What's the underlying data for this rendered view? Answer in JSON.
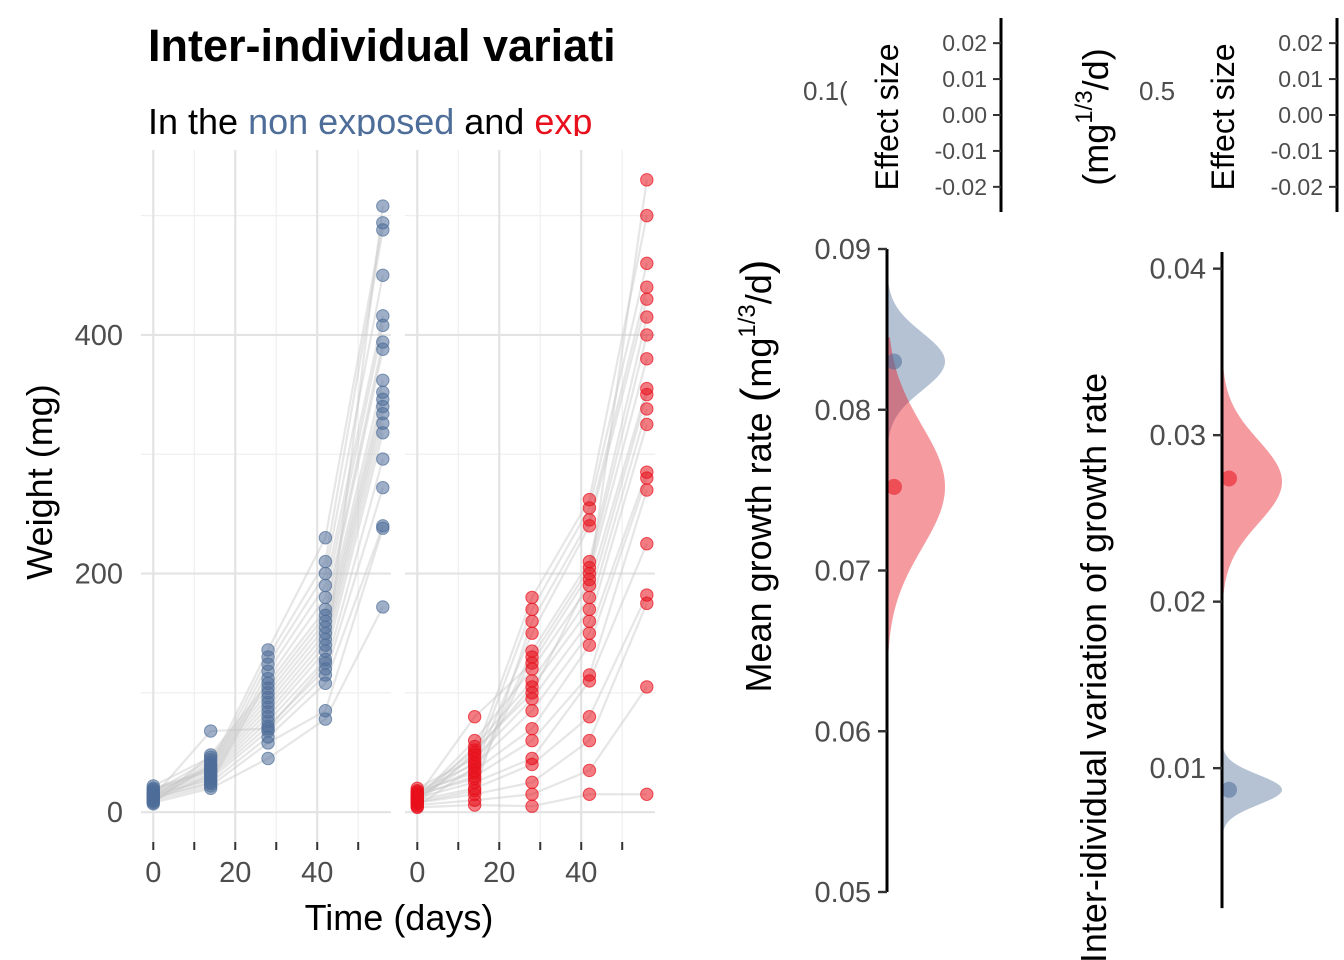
{
  "title": "Inter-individual variati",
  "subtitle": {
    "part1": "In the ",
    "group1": "non exposed",
    "part2": " and ",
    "group2": "exp"
  },
  "colors": {
    "non_exposed": "#4e6d99",
    "exposed": "#e8101c",
    "individual_lines": "#c8c8c8",
    "gridlines": "#e6e6e6",
    "background": "#ffffff"
  },
  "chart_data": [
    {
      "type": "scatter",
      "panel": "non exposed",
      "xlabel": "Time (days)",
      "ylabel": "Weight (mg)",
      "xlim": [
        -3,
        58
      ],
      "ylim": [
        -25,
        555
      ],
      "xticks": [
        0,
        20,
        40
      ],
      "yticks": [
        0,
        200,
        400
      ],
      "grid": true,
      "color": "#4e6d99",
      "times": [
        0,
        14,
        28,
        42,
        56
      ],
      "weights": {
        "t0": [
          8,
          10,
          12,
          14,
          15,
          16,
          18,
          20,
          11,
          9,
          13,
          17,
          22,
          7,
          12,
          14,
          10,
          19,
          15,
          13
        ],
        "t14": [
          20,
          22,
          25,
          28,
          30,
          32,
          34,
          36,
          38,
          40,
          42,
          44,
          46,
          48,
          24,
          27,
          31,
          35,
          39,
          68
        ],
        "t28": [
          45,
          58,
          63,
          68,
          72,
          76,
          80,
          84,
          88,
          92,
          96,
          100,
          104,
          108,
          112,
          118,
          124,
          130,
          136,
          70
        ],
        "t42": [
          78,
          85,
          108,
          115,
          120,
          128,
          135,
          140,
          145,
          150,
          155,
          160,
          165,
          170,
          180,
          190,
          200,
          210,
          230,
          125
        ],
        "t56": [
          172,
          238,
          240,
          272,
          296,
          318,
          326,
          334,
          340,
          346,
          352,
          362,
          388,
          394,
          408,
          416,
          450,
          488,
          494,
          508
        ]
      }
    },
    {
      "type": "scatter",
      "panel": "exposed",
      "xlabel": "Time (days)",
      "ylabel": "",
      "xlim": [
        -3,
        58
      ],
      "ylim": [
        -25,
        555
      ],
      "xticks": [
        0,
        20,
        40
      ],
      "grid": true,
      "color": "#e8101c",
      "times": [
        0,
        14,
        28,
        42,
        56
      ],
      "weights": {
        "t0": [
          4,
          6,
          8,
          10,
          12,
          14,
          16,
          18,
          20,
          7,
          9,
          11,
          13,
          15,
          17,
          5,
          8,
          12,
          10,
          14
        ],
        "t14": [
          6,
          10,
          15,
          20,
          25,
          30,
          35,
          40,
          45,
          50,
          55,
          60,
          80,
          28,
          33,
          38,
          18,
          42,
          48,
          52
        ],
        "t28": [
          5,
          15,
          25,
          40,
          45,
          60,
          70,
          85,
          95,
          105,
          110,
          120,
          125,
          130,
          135,
          150,
          160,
          170,
          180,
          100
        ],
        "t42": [
          15,
          35,
          60,
          80,
          110,
          115,
          140,
          150,
          160,
          170,
          180,
          190,
          200,
          205,
          210,
          240,
          245,
          255,
          262,
          195
        ],
        "t56": [
          15,
          105,
          175,
          182,
          225,
          270,
          280,
          285,
          325,
          338,
          350,
          355,
          380,
          400,
          415,
          430,
          440,
          460,
          500,
          530
        ]
      }
    },
    {
      "type": "area",
      "panel": "effect-size-mean",
      "ylabel": "Effect size",
      "ylim": [
        -0.027,
        0.027
      ],
      "yticks": [
        0.02,
        0.01,
        0.0,
        -0.01,
        -0.02
      ],
      "ytick_labels": [
        "0.02",
        "0.01",
        "0.00",
        "-0.01",
        "-0.02"
      ],
      "cut_label": "0.1("
    },
    {
      "type": "area",
      "panel": "mean-growth-rate",
      "ylabel": "Mean growth rate",
      "ylabel_unit": "mg",
      "ylabel_unit_exponent": "1/3",
      "ylabel_unit_tail": "/d",
      "ylim": [
        0.05,
        0.09
      ],
      "yticks": [
        0.09,
        0.08,
        0.07,
        0.06,
        0.05
      ],
      "ytick_labels": [
        "0.09",
        "0.08",
        "0.07",
        "0.06",
        "0.05"
      ],
      "series": [
        {
          "name": "non exposed",
          "color": "#4e6d99",
          "mean": 0.083,
          "sd": 0.0018,
          "range": [
            0.0765,
            0.0895
          ],
          "point": 0.083
        },
        {
          "name": "exposed",
          "color": "#e8101c",
          "mean": 0.0752,
          "sd": 0.0038,
          "range": [
            0.0645,
            0.0845
          ],
          "point": 0.0752
        }
      ]
    },
    {
      "type": "area",
      "panel": "effect-size-variation",
      "ylabel": "Effect size",
      "ylim": [
        -0.027,
        0.027
      ],
      "yticks": [
        0.02,
        0.01,
        0.0,
        -0.01,
        -0.02
      ],
      "ytick_labels": [
        "0.02",
        "0.01",
        "0.00",
        "-0.01",
        "-0.02"
      ],
      "cut_label": "0.5",
      "right_ylabel": "(mg",
      "right_ylabel_exponent": "1/3",
      "right_ylabel_tail": "/d)"
    },
    {
      "type": "area",
      "panel": "inter-individual-variation",
      "ylabel": "Inter-idividual variation of growth rate",
      "ylabel_suffix": "(mg",
      "ylabel_exponent": "1/3",
      "ylabel_tail": "/d)",
      "ylim": [
        0.001,
        0.041
      ],
      "yticks": [
        0.04,
        0.03,
        0.02,
        0.01
      ],
      "ytick_labels": [
        "0.04",
        "0.03",
        "0.02",
        "0.01"
      ],
      "series": [
        {
          "name": "exposed",
          "color": "#e8101c",
          "mean": 0.0272,
          "sd": 0.0025,
          "range": [
            0.0205,
            0.0365
          ],
          "point": 0.0274
        },
        {
          "name": "non exposed",
          "color": "#4e6d99",
          "mean": 0.0087,
          "sd": 0.0009,
          "range": [
            0.0055,
            0.0112
          ],
          "point": 0.0087
        }
      ]
    }
  ]
}
